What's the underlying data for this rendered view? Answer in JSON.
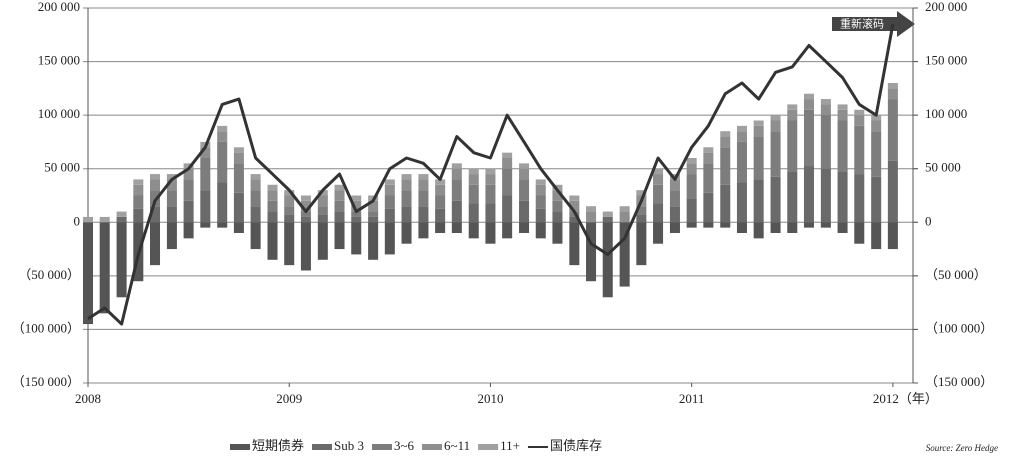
{
  "chart_data": {
    "type": "bar-line",
    "annotation": "重新滚码",
    "source": "Source: Zero Hedge",
    "x": [
      2008,
      2008.083,
      2008.167,
      2008.25,
      2008.333,
      2008.417,
      2008.5,
      2008.583,
      2008.667,
      2008.75,
      2008.833,
      2008.917,
      2009,
      2009.083,
      2009.167,
      2009.25,
      2009.333,
      2009.417,
      2009.5,
      2009.583,
      2009.667,
      2009.75,
      2009.833,
      2009.917,
      2010,
      2010.083,
      2010.167,
      2010.25,
      2010.333,
      2010.417,
      2010.5,
      2010.583,
      2010.667,
      2010.75,
      2010.833,
      2010.917,
      2011,
      2011.083,
      2011.167,
      2011.25,
      2011.333,
      2011.417,
      2011.5,
      2011.583,
      2011.667,
      2011.75,
      2011.833,
      2011.917,
      2012
    ],
    "series": [
      {
        "name": "短期债券",
        "color": "#555555",
        "values": [
          -95000,
          -85000,
          -70000,
          -55000,
          -40000,
          -25000,
          -15000,
          -5000,
          -5000,
          -10000,
          -25000,
          -35000,
          -40000,
          -45000,
          -35000,
          -25000,
          -30000,
          -35000,
          -30000,
          -20000,
          -15000,
          -10000,
          -10000,
          -15000,
          -20000,
          -15000,
          -10000,
          -15000,
          -20000,
          -40000,
          -55000,
          -70000,
          -60000,
          -40000,
          -20000,
          -10000,
          -5000,
          -5000,
          -5000,
          -10000,
          -15000,
          -10000,
          -10000,
          -5000,
          -5000,
          -10000,
          -20000,
          -25000,
          -25000
        ]
      },
      {
        "name": "Sub 3",
        "color": "#6a6a6a",
        "values": [
          0,
          0,
          5000,
          12500,
          15000,
          15000,
          20000,
          30000,
          37500,
          27500,
          15000,
          10000,
          7500,
          5000,
          7500,
          10000,
          5000,
          5000,
          12500,
          15000,
          15000,
          12500,
          20000,
          17500,
          17500,
          25000,
          20000,
          12500,
          10000,
          5000,
          0,
          5000,
          0,
          7500,
          17500,
          15000,
          22500,
          27500,
          35000,
          37500,
          40000,
          42500,
          47500,
          52500,
          50000,
          47500,
          45000,
          42500,
          57500
        ]
      },
      {
        "name": "3~6",
        "color": "#7d7d7d",
        "values": [
          0,
          0,
          0,
          12500,
          15000,
          15000,
          20000,
          30000,
          37500,
          27500,
          15000,
          10000,
          7500,
          5000,
          7500,
          10000,
          5000,
          5000,
          12500,
          15000,
          15000,
          12500,
          20000,
          17500,
          17500,
          25000,
          20000,
          12500,
          10000,
          5000,
          0,
          0,
          0,
          7500,
          17500,
          15000,
          22500,
          27500,
          35000,
          37500,
          40000,
          42500,
          47500,
          52500,
          50000,
          47500,
          45000,
          42500,
          57500
        ]
      },
      {
        "name": "6~11",
        "color": "#8e8e8e",
        "values": [
          0,
          0,
          0,
          10000,
          10000,
          10000,
          10000,
          10000,
          10000,
          10000,
          10000,
          10000,
          10000,
          10000,
          10000,
          10000,
          10000,
          10000,
          10000,
          10000,
          10000,
          10000,
          10000,
          10000,
          10000,
          10000,
          10000,
          10000,
          10000,
          10000,
          10000,
          0,
          10000,
          10000,
          10000,
          10000,
          10000,
          10000,
          10000,
          10000,
          10000,
          10000,
          10000,
          10000,
          10000,
          10000,
          10000,
          10000,
          10000
        ]
      },
      {
        "name": "11+",
        "color": "#a0a0a0",
        "values": [
          5000,
          5000,
          5000,
          5000,
          5000,
          5000,
          5000,
          5000,
          5000,
          5000,
          5000,
          5000,
          5000,
          5000,
          5000,
          5000,
          5000,
          5000,
          5000,
          5000,
          5000,
          5000,
          5000,
          5000,
          5000,
          5000,
          5000,
          5000,
          5000,
          5000,
          5000,
          5000,
          5000,
          5000,
          5000,
          5000,
          5000,
          5000,
          5000,
          5000,
          5000,
          5000,
          5000,
          5000,
          5000,
          5000,
          5000,
          5000,
          5000
        ]
      },
      {
        "name": "国债库存",
        "color": "#333333",
        "type": "line",
        "values": [
          -90000,
          -80000,
          -95000,
          -30000,
          20000,
          40000,
          50000,
          70000,
          110000,
          115000,
          60000,
          45000,
          30000,
          10000,
          30000,
          45000,
          10000,
          20000,
          50000,
          60000,
          55000,
          40000,
          80000,
          65000,
          60000,
          100000,
          75000,
          50000,
          30000,
          10000,
          -20000,
          -30000,
          -15000,
          20000,
          60000,
          40000,
          70000,
          90000,
          120000,
          130000,
          115000,
          140000,
          145000,
          165000,
          150000,
          135000,
          110000,
          100000,
          185000
        ]
      }
    ],
    "xlim": [
      2008,
      2012.1
    ],
    "xticks": [
      2008,
      2009,
      2010,
      2011,
      {
        "value": 2012,
        "label": "2012（年）"
      }
    ],
    "ylim": [
      -150000,
      200000
    ],
    "yticks": [
      {
        "value": -150000,
        "label": "（150 000）"
      },
      {
        "value": -100000,
        "label": "（100 000）"
      },
      {
        "value": -50000,
        "label": "（50 000）"
      },
      0,
      {
        "value": 50000,
        "label": "50 000"
      },
      {
        "value": 100000,
        "label": "100 000"
      },
      {
        "value": 150000,
        "label": "150 000"
      },
      {
        "value": 200000,
        "label": "200 000"
      }
    ],
    "y2lim": [
      -150000,
      200000
    ],
    "y2ticks": [
      {
        "value": -150000,
        "label": "（150 000）"
      },
      {
        "value": -100000,
        "label": "（100 000）"
      },
      {
        "value": -50000,
        "label": "（50 000）"
      },
      0,
      {
        "value": 50000,
        "label": "50 000"
      },
      {
        "value": 100000,
        "label": "100 000"
      },
      {
        "value": 150000,
        "label": "150 000"
      },
      {
        "value": 200000,
        "label": "200 000"
      }
    ],
    "grid": true
  }
}
